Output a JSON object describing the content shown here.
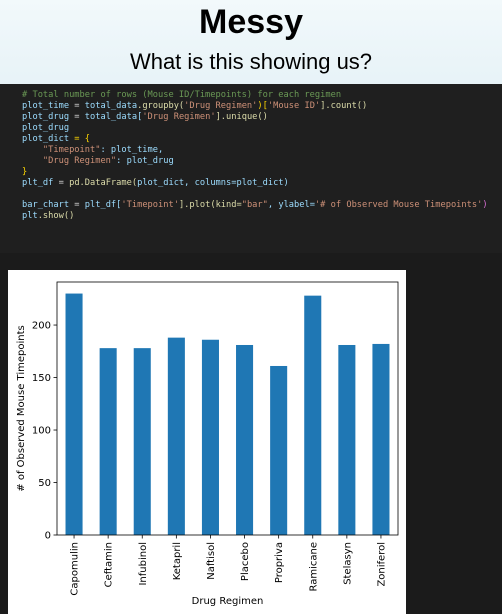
{
  "slide": {
    "title": "Messy",
    "subtitle": "What is this showing us?"
  },
  "code": {
    "comment": "# Total number of rows (Mouse ID/Timepoints) for each regimen",
    "line1_var": "plot_time",
    "line1_eq": " = ",
    "line1_obj": "total_data",
    "line1_fn": ".groupby(",
    "line1_str1": "'Drug Regimen'",
    "line1_br": ")[",
    "line1_str2": "'Mouse ID'",
    "line1_end": "].count()",
    "line2_var": "plot_drug",
    "line2_eq": " = ",
    "line2_obj": "total_data[",
    "line2_str": "'Drug Regimen'",
    "line2_end": "].unique()",
    "line3": "plot_drug",
    "line4_var": "plot_dict",
    "line4_rest": " = {",
    "line5_str": "\"Timepoint\"",
    "line5_rest": ": plot_time,",
    "line6_str": "\"Drug Regimen\"",
    "line6_rest": ": plot_drug",
    "line7": "}",
    "line8_var": "plt_df",
    "line8_eq": " = ",
    "line8_obj": "pd.DataFrame(",
    "line8_rest": "plot_dict, columns=plot_dict)",
    "line9_var": "bar_chart",
    "line9_eq": " = ",
    "line9_obj": "plt_df[",
    "line9_str": "'Timepoint'",
    "line9_mid": "].plot(kind=",
    "line9_str2": "\"bar\"",
    "line9_mid2": ", ylabel=",
    "line9_str3": "'# of Observed Mouse Timepoints'",
    "line9_end": ")",
    "line10_obj": "plt",
    "line10_fn": ".show()"
  },
  "chart_data": {
    "type": "bar",
    "categories": [
      "Capomulin",
      "Ceftamin",
      "Infubinol",
      "Ketapril",
      "Naftisol",
      "Placebo",
      "Propriva",
      "Ramicane",
      "Stelasyn",
      "Zoniferol"
    ],
    "values": [
      230,
      178,
      178,
      188,
      186,
      181,
      161,
      228,
      181,
      182
    ],
    "xlabel": "Drug Regimen",
    "ylabel": "# of Observed Mouse Timepoints",
    "ylim": [
      0,
      241
    ],
    "yticks": [
      0,
      50,
      100,
      150,
      200
    ],
    "bar_color": "#1f77b4",
    "grid": false,
    "legend": "none"
  }
}
